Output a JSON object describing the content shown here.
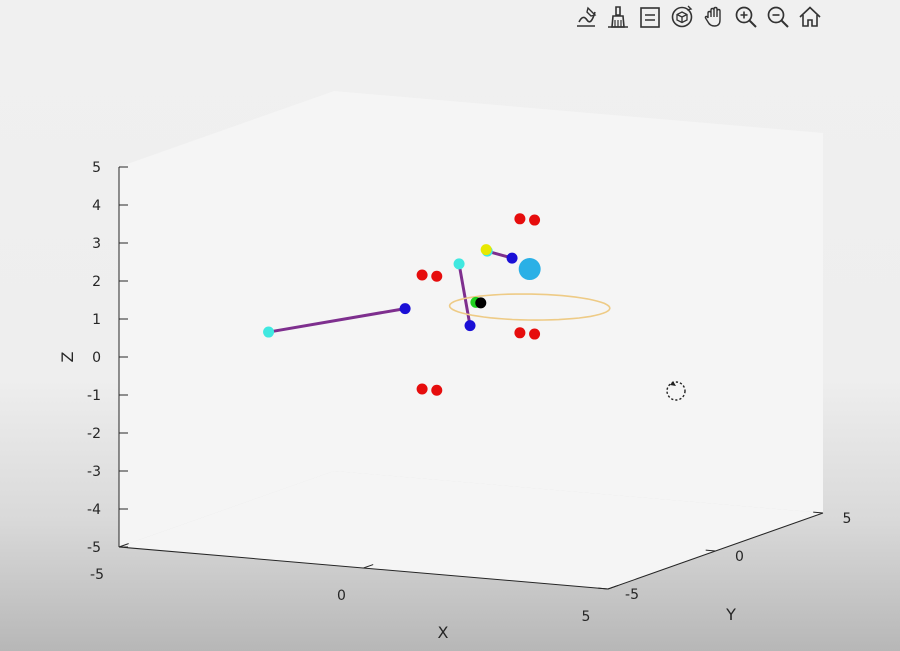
{
  "toolbar": {
    "buttons": [
      {
        "icon": "edit-plot-icon"
      },
      {
        "icon": "data-brush-icon"
      },
      {
        "icon": "insert-legend-icon"
      },
      {
        "icon": "rotate-3d-icon"
      },
      {
        "icon": "pan-hand-icon"
      },
      {
        "icon": "zoom-in-icon"
      },
      {
        "icon": "zoom-out-icon"
      },
      {
        "icon": "restore-view-home-icon"
      }
    ]
  },
  "chart_data": {
    "type": "scatter",
    "projection": "3d",
    "xlabel": "X",
    "ylabel": "Y",
    "zlabel": "Z",
    "xlim": [
      -5,
      5
    ],
    "ylim": [
      -5,
      5
    ],
    "zlim": [
      -5,
      5
    ],
    "x_ticks": [
      "-5",
      "0",
      "5"
    ],
    "y_ticks": [
      "-5",
      "0",
      "5"
    ],
    "z_ticks": [
      "-5",
      "-4",
      "-3",
      "-2",
      "-1",
      "0",
      "1",
      "2",
      "3",
      "4",
      "5"
    ],
    "grid": false,
    "background": "#f5f5f5",
    "colors": {
      "purple": "#7e2f8e",
      "blue": "#1a0fd6",
      "cyan": "#40e8e0",
      "red": "#e60d0d",
      "yellow": "#e8e800",
      "green": "#1fd11f",
      "black": "#000000",
      "skyblue": "#2ab0e6",
      "orange": "#eecb86"
    },
    "series": [
      {
        "marker": "line",
        "color": "purple",
        "points": [
          [
            -3.7,
            -1.0,
            0.0
          ],
          [
            -0.6,
            -1.7,
            1.1
          ]
        ]
      },
      {
        "marker": "line",
        "color": "purple",
        "points": [
          [
            -0.2,
            -0.1,
            2.0
          ],
          [
            0.2,
            -0.5,
            0.5
          ]
        ]
      },
      {
        "marker": "line",
        "color": "purple",
        "points": [
          [
            0.2,
            0.3,
            2.3
          ],
          [
            0.4,
            1.0,
            2.0
          ]
        ]
      },
      {
        "marker": "point",
        "color": "cyan",
        "points": [
          [
            -3.7,
            -1.0,
            0.0
          ],
          [
            -0.2,
            -0.1,
            2.0
          ],
          [
            0.2,
            0.3,
            2.3
          ]
        ]
      },
      {
        "marker": "point",
        "color": "blue",
        "points": [
          [
            -0.6,
            -1.7,
            1.1
          ],
          [
            0.2,
            -0.5,
            0.5
          ],
          [
            0.4,
            1.0,
            2.0
          ]
        ]
      },
      {
        "marker": "point",
        "color": "yellow",
        "points": [
          [
            0.2,
            0.25,
            2.35
          ]
        ]
      },
      {
        "marker": "point",
        "color": "green",
        "points": [
          [
            0.1,
            0.0,
            1.0
          ]
        ]
      },
      {
        "marker": "point",
        "color": "black",
        "points": [
          [
            0.2,
            0.0,
            1.0
          ]
        ]
      },
      {
        "marker": "point",
        "color": "red",
        "points": [
          [
            -1.0,
            0.0,
            1.6
          ],
          [
            -0.7,
            0.0,
            1.6
          ],
          [
            1.0,
            0.0,
            3.3
          ],
          [
            1.3,
            0.0,
            3.3
          ],
          [
            1.0,
            0.0,
            0.3
          ],
          [
            1.3,
            0.0,
            0.3
          ],
          [
            -1.0,
            0.0,
            -1.4
          ],
          [
            -0.7,
            0.0,
            -1.4
          ]
        ]
      },
      {
        "marker": "large-point",
        "color": "skyblue",
        "points": [
          [
            1.2,
            0.0,
            2.0
          ]
        ]
      },
      {
        "marker": "ring",
        "color": "orange",
        "center": [
          1.2,
          0.0,
          1.0
        ],
        "radius": 1.5
      }
    ]
  },
  "cursor": {
    "icon": "rotate-cursor-icon"
  }
}
